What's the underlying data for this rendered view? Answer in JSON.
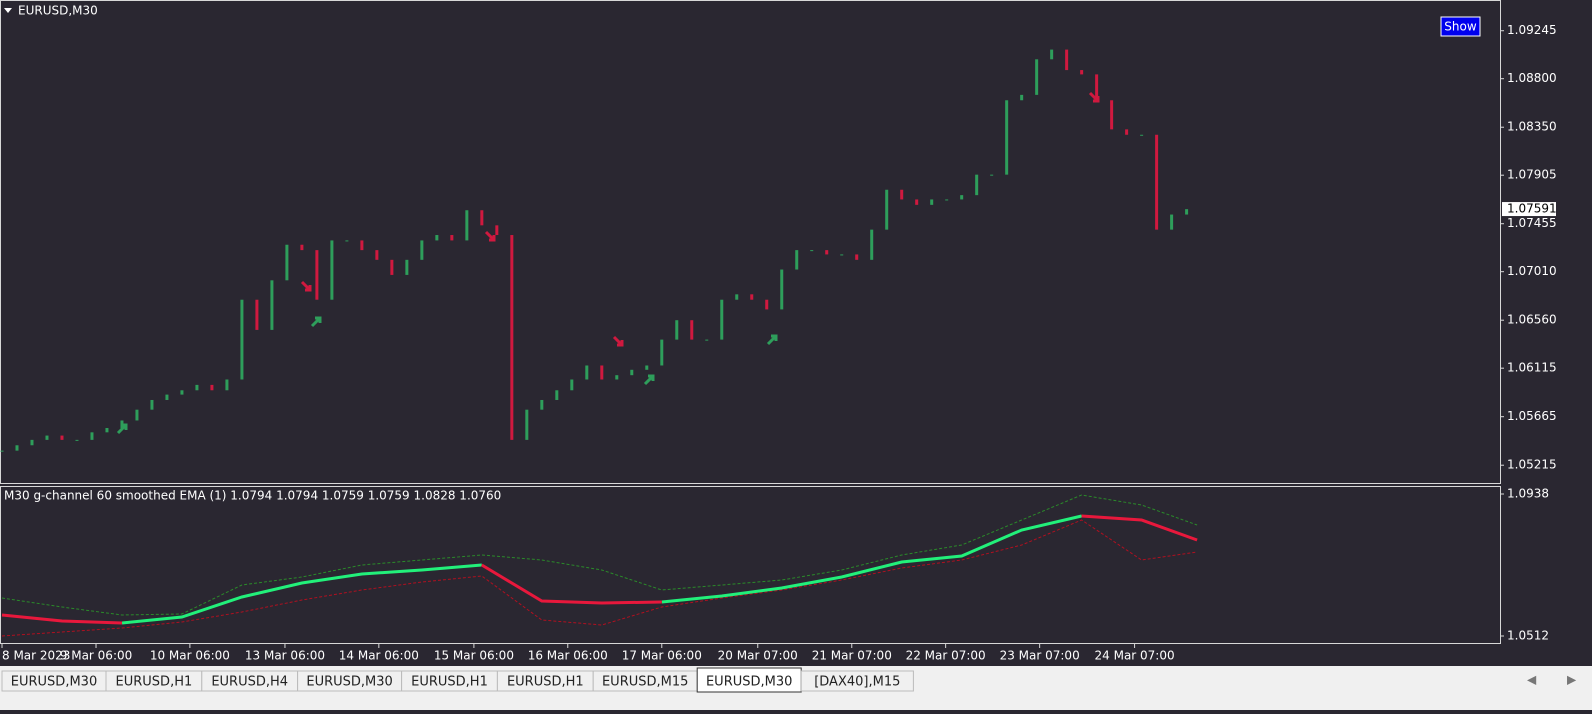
{
  "window_title": "EURUSD,M30",
  "button": "Show",
  "chart_data": {
    "type": "candlestick",
    "closes": [
      1.0535,
      1.054,
      1.0545,
      1.0549,
      1.0545,
      1.0545,
      1.0552,
      1.0556,
      1.0563,
      1.0573,
      1.0582,
      1.0587,
      1.0591,
      1.0596,
      1.0591,
      1.0601,
      1.0675,
      1.0647,
      1.0693,
      1.0726,
      1.0721,
      1.0675,
      1.073,
      1.073,
      1.0721,
      1.0712,
      1.0698,
      1.0712,
      1.073,
      1.0735,
      1.073,
      1.0758,
      1.0744,
      1.0735,
      1.0545,
      1.0573,
      1.0582,
      1.0591,
      1.0601,
      1.0614,
      1.0601,
      1.0605,
      1.061,
      1.0614,
      1.0638,
      1.0656,
      1.0638,
      1.0638,
      1.0675,
      1.068,
      1.0675,
      1.0666,
      1.0703,
      1.0721,
      1.0721,
      1.0717,
      1.0717,
      1.0712,
      1.074,
      1.0777,
      1.0768,
      1.0763,
      1.0768,
      1.0768,
      1.0772,
      1.0791,
      1.0791,
      1.086,
      1.0865,
      1.0898,
      1.0907,
      1.0888,
      1.0884,
      1.086,
      1.0833,
      1.0828,
      1.0828,
      1.074,
      1.0754,
      1.0759
    ],
    "up_color": "#2e9e5b",
    "down_color": "#d0193f",
    "xlim": [
      0,
      99.9
    ],
    "xticks": [
      {
        "value": 0,
        "label": "8 Mar 2023"
      },
      {
        "value": 6.27,
        "label": "9 Mar 06:00"
      },
      {
        "value": 12.53,
        "label": "10 Mar 06:00"
      },
      {
        "value": 18.87,
        "label": "13 Mar 06:00"
      },
      {
        "value": 25.13,
        "label": "14 Mar 06:00"
      },
      {
        "value": 31.47,
        "label": "15 Mar 06:00"
      },
      {
        "value": 37.73,
        "label": "16 Mar 06:00"
      },
      {
        "value": 44,
        "label": "17 Mar 06:00"
      },
      {
        "value": 50.4,
        "label": "20 Mar 07:00"
      },
      {
        "value": 56.67,
        "label": "21 Mar 07:00"
      },
      {
        "value": 62.93,
        "label": "22 Mar 07:00"
      },
      {
        "value": 69.2,
        "label": "23 Mar 07:00"
      },
      {
        "value": 75.53,
        "label": "24 Mar 07:00"
      }
    ],
    "ylim": [
      1.0505,
      1.0953
    ],
    "yticks": [
      1.09245,
      {
        "value": 1.088,
        "label": "1.08800"
      },
      {
        "value": 1.0835,
        "label": "1.08350"
      },
      1.07905,
      1.07455,
      {
        "value": 1.0701,
        "label": "1.07010"
      },
      {
        "value": 1.0656,
        "label": "1.06560"
      },
      1.06115,
      1.05665,
      1.05215
    ],
    "last_price": 1.07591
  },
  "indicator": {
    "type": "line",
    "title": "M30 g-channel  60 smoothed EMA (1) 1.0794 1.0794 1.0759 1.0759 1.0828 1.0760",
    "x": [
      0,
      4,
      8,
      12,
      16,
      20,
      24,
      28,
      32,
      36,
      40,
      44,
      48,
      52,
      56,
      60,
      64,
      68,
      72,
      76,
      79.7
    ],
    "series": [
      {
        "color": "#22f07a",
        "values": [
          null,
          null,
          1.0551,
          1.0569,
          1.0629,
          1.0671,
          1.0698,
          1.071,
          1.0725,
          null,
          null,
          1.0614,
          1.0632,
          1.0656,
          1.0689,
          1.0734,
          1.0752,
          1.083,
          1.0872,
          null,
          null
        ]
      },
      {
        "color": "#e8183c",
        "values": [
          1.0575,
          1.0557,
          1.0551,
          null,
          null,
          null,
          null,
          null,
          1.0725,
          1.0617,
          1.0611,
          1.0614,
          null,
          null,
          null,
          null,
          null,
          null,
          1.0872,
          1.086,
          1.08
        ]
      },
      {
        "color": "#2a8a2a",
        "dashed": true,
        "values": [
          1.0626,
          1.0599,
          1.0575,
          1.0578,
          1.0665,
          1.0689,
          1.0725,
          1.074,
          1.0755,
          1.074,
          1.071,
          1.065,
          1.0665,
          1.068,
          1.071,
          1.0755,
          1.0785,
          1.086,
          1.0935,
          1.0905,
          1.0845
        ]
      },
      {
        "color": "#b01020",
        "dashed": true,
        "values": [
          1.0512,
          1.0524,
          1.0536,
          1.0554,
          1.0584,
          1.062,
          1.065,
          1.0674,
          1.0692,
          1.056,
          1.0545,
          1.0599,
          1.0626,
          1.065,
          1.068,
          1.0716,
          1.074,
          1.0785,
          1.086,
          1.074,
          1.0764
        ]
      }
    ],
    "ylim": [
      1.0491,
      1.0959
    ],
    "yticks": [
      1.0938,
      1.0512
    ]
  },
  "tabs": [
    "EURUSD,M30",
    "EURUSD,H1",
    "EURUSD,H4",
    "EURUSD,M30",
    "EURUSD,H1",
    "EURUSD,H1",
    "EURUSD,M15",
    "EURUSD,M30",
    "[DAX40],M15"
  ],
  "active_tab": 7
}
